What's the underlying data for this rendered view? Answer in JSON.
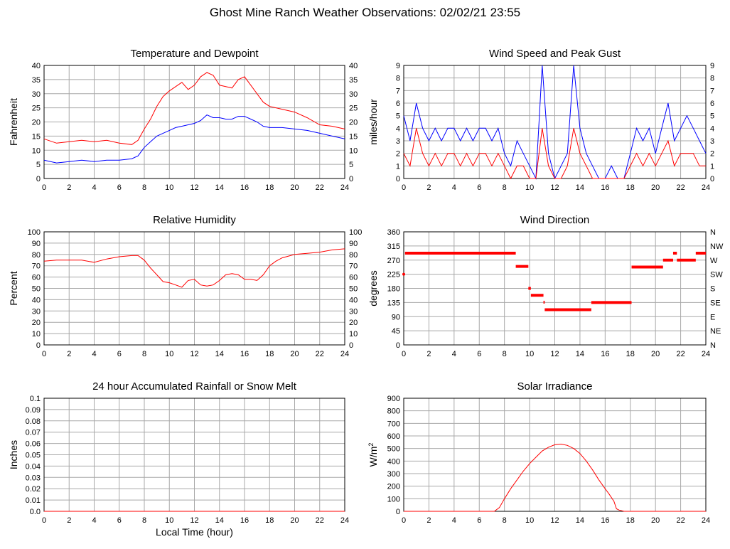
{
  "page": {
    "title": "Ghost Mine Ranch Weather Observations: 02/02/21 23:55"
  },
  "xaxis_shared_label": "Local Time (hour)",
  "colors": {
    "red": "#ff0000",
    "blue": "#0000ff",
    "grid": "#a8a8a8"
  },
  "chart_data": [
    {
      "type": "line",
      "title": "Temperature and Dewpoint",
      "ylabel": "Fahrenheit",
      "xlabel": "",
      "xlim": [
        0,
        24
      ],
      "ylim": [
        0,
        40
      ],
      "xticks": [
        0,
        2,
        4,
        6,
        8,
        10,
        12,
        14,
        16,
        18,
        20,
        22,
        24
      ],
      "yticks": [
        0,
        5,
        10,
        15,
        20,
        25,
        30,
        35,
        40
      ],
      "right_axis": true,
      "series": [
        {
          "color": "#ff0000",
          "x": [
            0,
            1,
            2,
            3,
            4,
            5,
            6,
            7,
            7.5,
            8,
            8.5,
            9,
            9.5,
            10,
            10.5,
            11,
            11.5,
            12,
            12.5,
            13,
            13.5,
            14,
            14.5,
            15,
            15.5,
            16,
            16.5,
            17,
            17.5,
            18,
            19,
            20,
            21,
            22,
            23,
            24
          ],
          "y": [
            14,
            12.5,
            13,
            13.5,
            13,
            13.5,
            12.5,
            12,
            13.5,
            17.5,
            21,
            25.5,
            29,
            31,
            32.5,
            34,
            31.5,
            33,
            36,
            37.5,
            36.5,
            33,
            32.5,
            32,
            35,
            36,
            33,
            30,
            27,
            25.5,
            24.5,
            23.5,
            21.5,
            19,
            18.5,
            17.5
          ]
        },
        {
          "color": "#0000ff",
          "x": [
            0,
            1,
            2,
            3,
            4,
            5,
            6,
            7,
            7.5,
            8,
            8.5,
            9,
            9.5,
            10,
            10.5,
            11,
            11.5,
            12,
            12.5,
            13,
            13.5,
            14,
            14.5,
            15,
            15.5,
            16,
            16.5,
            17,
            17.5,
            18,
            19,
            20,
            21,
            22,
            23,
            24
          ],
          "y": [
            6.5,
            5.5,
            6,
            6.5,
            6,
            6.5,
            6.5,
            7,
            8,
            11,
            13,
            15,
            16,
            17,
            18,
            18.5,
            19,
            19.5,
            20.5,
            22.5,
            21.5,
            21.5,
            21,
            21,
            22,
            22,
            21,
            20,
            18.5,
            18,
            18,
            17.5,
            17,
            16,
            15,
            14
          ]
        }
      ]
    },
    {
      "type": "line",
      "title": "Wind Speed and Peak Gust",
      "ylabel": "miles/hour",
      "xlabel": "",
      "xlim": [
        0,
        24
      ],
      "ylim": [
        0,
        9
      ],
      "xticks": [
        0,
        2,
        4,
        6,
        8,
        10,
        12,
        14,
        16,
        18,
        20,
        22,
        24
      ],
      "yticks": [
        0,
        1,
        2,
        3,
        4,
        5,
        6,
        7,
        8,
        9
      ],
      "right_axis": true,
      "series": [
        {
          "color": "#0000ff",
          "x": [
            0,
            0.5,
            1,
            1.5,
            2,
            2.5,
            3,
            3.5,
            4,
            4.5,
            5,
            5.5,
            6,
            6.5,
            7,
            7.5,
            8,
            8.5,
            9,
            9.5,
            10,
            10.5,
            11,
            11.5,
            12,
            12.5,
            13,
            13.5,
            14,
            14.5,
            15,
            15.5,
            16,
            16.5,
            17,
            17.5,
            18,
            18.5,
            19,
            19.5,
            20,
            20.5,
            21,
            21.5,
            22,
            22.5,
            23,
            23.5,
            24
          ],
          "y": [
            5,
            3,
            6,
            4,
            3,
            4,
            3,
            4,
            4,
            3,
            4,
            3,
            4,
            4,
            3,
            4,
            2,
            1,
            3,
            2,
            1,
            0,
            9,
            2,
            0,
            1,
            2,
            9,
            4,
            2,
            1,
            0,
            0,
            1,
            0,
            0,
            2,
            4,
            3,
            4,
            2,
            4,
            6,
            3,
            4,
            5,
            4,
            3,
            2
          ]
        },
        {
          "color": "#ff0000",
          "x": [
            0,
            0.5,
            1,
            1.5,
            2,
            2.5,
            3,
            3.5,
            4,
            4.5,
            5,
            5.5,
            6,
            6.5,
            7,
            7.5,
            8,
            8.5,
            9,
            9.5,
            10,
            10.5,
            11,
            11.5,
            12,
            12.5,
            13,
            13.5,
            14,
            14.5,
            15,
            15.5,
            16,
            16.5,
            17,
            17.5,
            18,
            18.5,
            19,
            19.5,
            20,
            20.5,
            21,
            21.5,
            22,
            22.5,
            23,
            23.5,
            24
          ],
          "y": [
            2,
            1,
            4,
            2,
            1,
            2,
            1,
            2,
            2,
            1,
            2,
            1,
            2,
            2,
            1,
            2,
            1,
            0,
            1,
            1,
            0,
            0,
            4,
            1,
            0,
            0,
            1,
            4,
            2,
            1,
            0,
            0,
            0,
            0,
            0,
            0,
            1,
            2,
            1,
            2,
            1,
            2,
            3,
            1,
            2,
            2,
            2,
            1,
            1
          ]
        }
      ]
    },
    {
      "type": "line",
      "title": "Relative Humidity",
      "ylabel": "Percent",
      "xlabel": "",
      "xlim": [
        0,
        24
      ],
      "ylim": [
        0,
        100
      ],
      "xticks": [
        0,
        2,
        4,
        6,
        8,
        10,
        12,
        14,
        16,
        18,
        20,
        22,
        24
      ],
      "yticks": [
        0,
        10,
        20,
        30,
        40,
        50,
        60,
        70,
        80,
        90,
        100
      ],
      "right_axis": true,
      "series": [
        {
          "color": "#ff0000",
          "x": [
            0,
            1,
            2,
            3,
            4,
            5,
            6,
            7,
            7.5,
            8,
            8.5,
            9,
            9.5,
            10,
            10.5,
            11,
            11.5,
            12,
            12.5,
            13,
            13.5,
            14,
            14.5,
            15,
            15.5,
            16,
            16.5,
            17,
            17.5,
            18,
            18.5,
            19,
            20,
            21,
            22,
            23,
            24
          ],
          "y": [
            74,
            75,
            75,
            75,
            73,
            76,
            78,
            79,
            79,
            75,
            68,
            62,
            56,
            55,
            53,
            51,
            57,
            58,
            53,
            52,
            53,
            57,
            62,
            63,
            62,
            58,
            58,
            57,
            62,
            70,
            74,
            77,
            80,
            81,
            82,
            84,
            85
          ]
        }
      ]
    },
    {
      "type": "scatter",
      "title": "Wind Direction",
      "ylabel": "degrees",
      "xlabel": "",
      "xlim": [
        0,
        24
      ],
      "ylim": [
        0,
        360
      ],
      "xticks": [
        0,
        2,
        4,
        6,
        8,
        10,
        12,
        14,
        16,
        18,
        20,
        22,
        24
      ],
      "yticks": [
        0,
        45,
        90,
        135,
        180,
        225,
        270,
        315,
        360
      ],
      "right_labels": [
        "N",
        "NE",
        "E",
        "SE",
        "S",
        "SW",
        "W",
        "NW",
        "N"
      ],
      "segments": [
        {
          "x": [
            0.1,
            8.9
          ],
          "y": 292
        },
        {
          "x": [
            8.9,
            9.9
          ],
          "y": 250
        },
        {
          "x": [
            9.9,
            10.1
          ],
          "y": 180
        },
        {
          "x": [
            10.1,
            11.1
          ],
          "y": 158
        },
        {
          "x": [
            11.1,
            11.2
          ],
          "y": 136
        },
        {
          "x": [
            11.2,
            14.9
          ],
          "y": 112
        },
        {
          "x": [
            14.9,
            18.1
          ],
          "y": 135
        },
        {
          "x": [
            18.1,
            20.6
          ],
          "y": 248
        },
        {
          "x": [
            20.6,
            21.4
          ],
          "y": 270
        },
        {
          "x": [
            21.4,
            21.7
          ],
          "y": 292
        },
        {
          "x": [
            21.7,
            23.2
          ],
          "y": 270
        },
        {
          "x": [
            23.2,
            24.0
          ],
          "y": 292
        }
      ],
      "points": [
        {
          "x": 0,
          "y": 225
        }
      ]
    },
    {
      "type": "line",
      "title": "24 hour Accumulated Rainfall or Snow Melt",
      "ylabel": "Inches",
      "xlabel": "Local Time (hour)",
      "xlim": [
        0,
        24
      ],
      "ylim": [
        0,
        0.1
      ],
      "xticks": [
        0,
        2,
        4,
        6,
        8,
        10,
        12,
        14,
        16,
        18,
        20,
        22,
        24
      ],
      "yticks": [
        "0.0",
        "0.01",
        "0.02",
        "0.03",
        "0.04",
        "0.05",
        "0.06",
        "0.07",
        "0.08",
        "0.09",
        "0.1"
      ],
      "right_axis": false,
      "series": [
        {
          "color": "#ff0000",
          "x": [
            0,
            24
          ],
          "y": [
            0,
            0
          ]
        }
      ]
    },
    {
      "type": "line",
      "title": "Solar Irradiance",
      "ylabel": "W/m",
      "ylabel_sup": "2",
      "xlabel": "",
      "xlim": [
        0,
        24
      ],
      "ylim": [
        0,
        900
      ],
      "xticks": [
        0,
        2,
        4,
        6,
        8,
        10,
        12,
        14,
        16,
        18,
        20,
        22,
        24
      ],
      "yticks": [
        0,
        100,
        200,
        300,
        400,
        500,
        600,
        700,
        800,
        900
      ],
      "right_axis": false,
      "series": [
        {
          "color": "#ff0000",
          "x": [
            0,
            7.2,
            7.6,
            8,
            8.5,
            9,
            9.5,
            10,
            10.5,
            11,
            11.5,
            12,
            12.5,
            13,
            13.5,
            14,
            14.5,
            15,
            15.5,
            16,
            16.3,
            16.7,
            16.9,
            17.1,
            17.5,
            24
          ],
          "y": [
            0,
            0,
            30,
            100,
            180,
            250,
            320,
            380,
            430,
            480,
            510,
            530,
            535,
            525,
            500,
            460,
            400,
            330,
            250,
            180,
            140,
            80,
            20,
            10,
            0,
            0
          ]
        }
      ]
    }
  ]
}
